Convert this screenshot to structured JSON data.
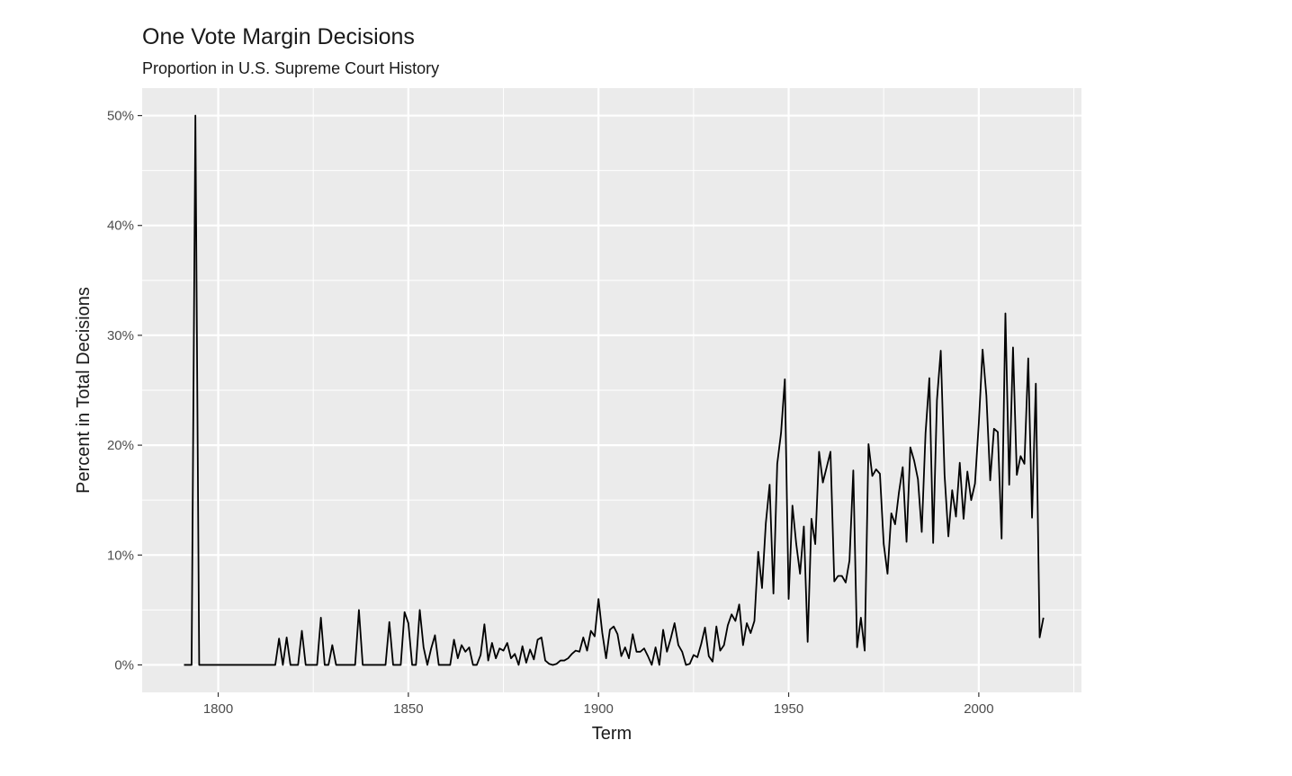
{
  "chart_data": {
    "type": "line",
    "title": "One Vote Margin Decisions",
    "subtitle": "Proportion in U.S. Supreme Court History",
    "xlabel": "Term",
    "ylabel": "Percent in Total Decisions",
    "xlim": [
      1780,
      2027
    ],
    "ylim": [
      -2.5,
      52.5
    ],
    "x_ticks": [
      1800,
      1850,
      1900,
      1950,
      2000
    ],
    "x_tick_labels": [
      "1800",
      "1850",
      "1900",
      "1950",
      "2000"
    ],
    "y_ticks": [
      0,
      10,
      20,
      30,
      40,
      50
    ],
    "y_tick_labels": [
      "0%",
      "10%",
      "20%",
      "30%",
      "40%",
      "50%"
    ],
    "grid": true,
    "legend": "none",
    "colors": {
      "panel": "#ebebeb",
      "grid": "#ffffff",
      "line": "#000000",
      "axis_text": "#4d4d4d",
      "title": "#1a1a1a"
    },
    "series": [
      {
        "points": [
          [
            1791,
            0
          ],
          [
            1792,
            0
          ],
          [
            1793,
            0
          ],
          [
            1794,
            50
          ],
          [
            1795,
            0
          ],
          [
            1796,
            0
          ],
          [
            1797,
            0
          ],
          [
            1798,
            0
          ],
          [
            1799,
            0
          ],
          [
            1800,
            0
          ],
          [
            1801,
            0
          ],
          [
            1802,
            0
          ],
          [
            1803,
            0
          ],
          [
            1804,
            0
          ],
          [
            1805,
            0
          ],
          [
            1806,
            0
          ],
          [
            1807,
            0
          ],
          [
            1808,
            0
          ],
          [
            1809,
            0
          ],
          [
            1810,
            0
          ],
          [
            1811,
            0
          ],
          [
            1812,
            0
          ],
          [
            1813,
            0
          ],
          [
            1814,
            0
          ],
          [
            1815,
            0
          ],
          [
            1816,
            2.4
          ],
          [
            1817,
            0
          ],
          [
            1818,
            2.5
          ],
          [
            1819,
            0
          ],
          [
            1820,
            0
          ],
          [
            1821,
            0
          ],
          [
            1822,
            3.1
          ],
          [
            1823,
            0
          ],
          [
            1824,
            0
          ],
          [
            1825,
            0
          ],
          [
            1826,
            0
          ],
          [
            1827,
            4.3
          ],
          [
            1828,
            0
          ],
          [
            1829,
            0
          ],
          [
            1830,
            1.8
          ],
          [
            1831,
            0
          ],
          [
            1832,
            0
          ],
          [
            1833,
            0
          ],
          [
            1834,
            0
          ],
          [
            1835,
            0
          ],
          [
            1836,
            0
          ],
          [
            1837,
            5.0
          ],
          [
            1838,
            0
          ],
          [
            1839,
            0
          ],
          [
            1840,
            0
          ],
          [
            1841,
            0
          ],
          [
            1842,
            0
          ],
          [
            1843,
            0
          ],
          [
            1844,
            0
          ],
          [
            1845,
            3.9
          ],
          [
            1846,
            0
          ],
          [
            1847,
            0
          ],
          [
            1848,
            0
          ],
          [
            1849,
            4.8
          ],
          [
            1850,
            3.8
          ],
          [
            1851,
            0
          ],
          [
            1852,
            0
          ],
          [
            1853,
            5.0
          ],
          [
            1854,
            1.6
          ],
          [
            1855,
            0
          ],
          [
            1856,
            1.5
          ],
          [
            1857,
            2.7
          ],
          [
            1858,
            0
          ],
          [
            1859,
            0
          ],
          [
            1860,
            0
          ],
          [
            1861,
            0
          ],
          [
            1862,
            2.3
          ],
          [
            1863,
            0.6
          ],
          [
            1864,
            1.8
          ],
          [
            1865,
            1.2
          ],
          [
            1866,
            1.6
          ],
          [
            1867,
            0
          ],
          [
            1868,
            0
          ],
          [
            1869,
            0.9
          ],
          [
            1870,
            3.7
          ],
          [
            1871,
            0.4
          ],
          [
            1872,
            2.0
          ],
          [
            1873,
            0.6
          ],
          [
            1874,
            1.5
          ],
          [
            1875,
            1.3
          ],
          [
            1876,
            2.0
          ],
          [
            1877,
            0.6
          ],
          [
            1878,
            1.0
          ],
          [
            1879,
            0
          ],
          [
            1880,
            1.7
          ],
          [
            1881,
            0.2
          ],
          [
            1882,
            1.4
          ],
          [
            1883,
            0.5
          ],
          [
            1884,
            2.3
          ],
          [
            1885,
            2.5
          ],
          [
            1886,
            0.4
          ],
          [
            1887,
            0.1
          ],
          [
            1888,
            0
          ],
          [
            1889,
            0.1
          ],
          [
            1890,
            0.4
          ],
          [
            1891,
            0.4
          ],
          [
            1892,
            0.6
          ],
          [
            1893,
            1.0
          ],
          [
            1894,
            1.3
          ],
          [
            1895,
            1.2
          ],
          [
            1896,
            2.5
          ],
          [
            1897,
            1.3
          ],
          [
            1898,
            3.1
          ],
          [
            1899,
            2.6
          ],
          [
            1900,
            6.0
          ],
          [
            1901,
            2.9
          ],
          [
            1902,
            0.6
          ],
          [
            1903,
            3.2
          ],
          [
            1904,
            3.5
          ],
          [
            1905,
            2.8
          ],
          [
            1906,
            0.8
          ],
          [
            1907,
            1.6
          ],
          [
            1908,
            0.6
          ],
          [
            1909,
            2.8
          ],
          [
            1910,
            1.2
          ],
          [
            1911,
            1.2
          ],
          [
            1912,
            1.5
          ],
          [
            1913,
            0.8
          ],
          [
            1914,
            0
          ],
          [
            1915,
            1.6
          ],
          [
            1916,
            0
          ],
          [
            1917,
            3.2
          ],
          [
            1918,
            1.2
          ],
          [
            1919,
            2.4
          ],
          [
            1920,
            3.8
          ],
          [
            1921,
            1.8
          ],
          [
            1922,
            1.2
          ],
          [
            1923,
            0
          ],
          [
            1924,
            0.1
          ],
          [
            1925,
            0.9
          ],
          [
            1926,
            0.7
          ],
          [
            1927,
            1.9
          ],
          [
            1928,
            3.4
          ],
          [
            1929,
            0.8
          ],
          [
            1930,
            0.3
          ],
          [
            1931,
            3.5
          ],
          [
            1932,
            1.3
          ],
          [
            1933,
            1.8
          ],
          [
            1934,
            3.6
          ],
          [
            1935,
            4.6
          ],
          [
            1936,
            4.0
          ],
          [
            1937,
            5.5
          ],
          [
            1938,
            1.8
          ],
          [
            1939,
            3.8
          ],
          [
            1940,
            2.9
          ],
          [
            1941,
            4.0
          ],
          [
            1942,
            10.3
          ],
          [
            1943,
            7.0
          ],
          [
            1944,
            12.9
          ],
          [
            1945,
            16.4
          ],
          [
            1946,
            6.5
          ],
          [
            1947,
            18.3
          ],
          [
            1948,
            21.1
          ],
          [
            1949,
            26.0
          ],
          [
            1950,
            6.0
          ],
          [
            1951,
            14.5
          ],
          [
            1952,
            11.0
          ],
          [
            1953,
            8.3
          ],
          [
            1954,
            12.6
          ],
          [
            1955,
            2.1
          ],
          [
            1956,
            13.3
          ],
          [
            1957,
            11.0
          ],
          [
            1958,
            19.4
          ],
          [
            1959,
            16.6
          ],
          [
            1960,
            18.0
          ],
          [
            1961,
            19.4
          ],
          [
            1962,
            7.6
          ],
          [
            1963,
            8.1
          ],
          [
            1964,
            8.1
          ],
          [
            1965,
            7.5
          ],
          [
            1966,
            9.5
          ],
          [
            1967,
            17.7
          ],
          [
            1968,
            1.6
          ],
          [
            1969,
            4.3
          ],
          [
            1970,
            1.3
          ],
          [
            1971,
            20.1
          ],
          [
            1972,
            17.2
          ],
          [
            1973,
            17.8
          ],
          [
            1974,
            17.4
          ],
          [
            1975,
            11.0
          ],
          [
            1976,
            8.3
          ],
          [
            1977,
            13.8
          ],
          [
            1978,
            12.8
          ],
          [
            1979,
            15.7
          ],
          [
            1980,
            18.0
          ],
          [
            1981,
            11.2
          ],
          [
            1982,
            19.8
          ],
          [
            1983,
            18.6
          ],
          [
            1984,
            16.9
          ],
          [
            1985,
            12.1
          ],
          [
            1986,
            21.1
          ],
          [
            1987,
            26.1
          ],
          [
            1988,
            11.1
          ],
          [
            1989,
            24.1
          ],
          [
            1990,
            28.6
          ],
          [
            1991,
            17.3
          ],
          [
            1992,
            11.7
          ],
          [
            1993,
            15.9
          ],
          [
            1994,
            13.5
          ],
          [
            1995,
            18.4
          ],
          [
            1996,
            13.3
          ],
          [
            1997,
            17.6
          ],
          [
            1998,
            15.0
          ],
          [
            1999,
            16.5
          ],
          [
            2000,
            22.0
          ],
          [
            2001,
            28.7
          ],
          [
            2002,
            24.5
          ],
          [
            2003,
            16.8
          ],
          [
            2004,
            21.5
          ],
          [
            2005,
            21.2
          ],
          [
            2006,
            11.5
          ],
          [
            2007,
            32.0
          ],
          [
            2008,
            16.4
          ],
          [
            2009,
            28.9
          ],
          [
            2010,
            17.3
          ],
          [
            2011,
            19.0
          ],
          [
            2012,
            18.3
          ],
          [
            2013,
            27.9
          ],
          [
            2014,
            13.4
          ],
          [
            2015,
            25.6
          ],
          [
            2016,
            2.5
          ],
          [
            2017,
            4.3
          ]
        ]
      }
    ]
  }
}
